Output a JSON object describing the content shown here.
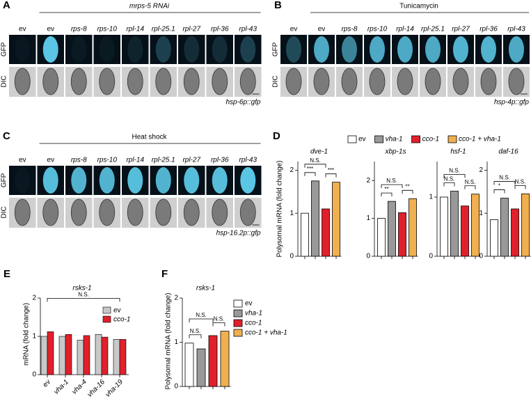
{
  "panels": [
    {
      "label": "A",
      "header": "mrps-5 RNAi",
      "columns": [
        "ev",
        "ev",
        "rps-8",
        "rps-10",
        "rpl-14",
        "rpl-25.1",
        "rpl-27",
        "rpl-36",
        "rpl-43"
      ],
      "rows": [
        "GFP",
        "DIC"
      ],
      "reporter": "hsp-6p::gfp"
    },
    {
      "label": "B",
      "header": "Tunicamycin",
      "columns": [
        "ev",
        "ev",
        "rps-8",
        "rps-10",
        "rpl-14",
        "rpl-25.1",
        "rpl-27",
        "rpl-36",
        "rpl-43"
      ],
      "rows": [
        "GFP",
        "DIC"
      ],
      "reporter": "hsp-4p::gfp"
    },
    {
      "label": "C",
      "header": "Heat shock",
      "columns": [
        "ev",
        "ev",
        "rps-8",
        "rps-10",
        "rpl-14",
        "rpl-25.1",
        "rpl-27",
        "rpl-36",
        "rpl-43"
      ],
      "rows": [
        "GFP",
        "DIC"
      ],
      "reporter": "hsp-16.2p::gfp"
    }
  ],
  "panel_d": {
    "label": "D",
    "y_label": "Polysomal mRNA (fold change)",
    "legend": [
      "ev",
      "vha-1",
      "cco-1",
      "cco-1 + vha-1"
    ]
  },
  "chart_data": [
    {
      "type": "bar",
      "title": "dve-1",
      "categories": [
        null,
        null,
        null,
        null
      ],
      "values": [
        1.0,
        1.75,
        1.1,
        1.72
      ],
      "colors": [
        "#ffffff",
        "#999999",
        "#e0202a",
        "#f0b050"
      ],
      "ylim": [
        0,
        2.2
      ],
      "yticks": [
        0,
        1,
        2
      ],
      "brackets": [
        {
          "from": 0,
          "to": 1,
          "label": "***"
        },
        {
          "from": 0,
          "to": 2,
          "label": "N.S."
        },
        {
          "from": 2,
          "to": 3,
          "label": "***"
        }
      ]
    },
    {
      "type": "bar",
      "title": "xbp-1s",
      "categories": [
        null,
        null,
        null,
        null
      ],
      "values": [
        1.0,
        1.45,
        1.15,
        1.52
      ],
      "colors": [
        "#ffffff",
        "#999999",
        "#e0202a",
        "#f0b050"
      ],
      "ylim": [
        0,
        2.5
      ],
      "yticks": [
        0,
        1,
        2
      ],
      "brackets": [
        {
          "from": 0,
          "to": 1,
          "label": "**"
        },
        {
          "from": 0,
          "to": 2,
          "label": "N.S."
        },
        {
          "from": 2,
          "to": 3,
          "label": "**"
        }
      ]
    },
    {
      "type": "bar",
      "title": "hsf-1",
      "categories": [
        null,
        null,
        null,
        null
      ],
      "values": [
        1.0,
        1.1,
        0.85,
        1.05
      ],
      "colors": [
        "#ffffff",
        "#999999",
        "#e0202a",
        "#f0b050"
      ],
      "ylim": [
        0,
        1.6
      ],
      "yticks": [
        0,
        1
      ],
      "brackets": [
        {
          "from": 0,
          "to": 1,
          "label": "N.S."
        },
        {
          "from": 0,
          "to": 2,
          "label": "N.S."
        },
        {
          "from": 2,
          "to": 3,
          "label": "N.S."
        }
      ]
    },
    {
      "type": "bar",
      "title": "daf-16",
      "categories": [
        null,
        null,
        null,
        null
      ],
      "values": [
        0.85,
        1.35,
        1.1,
        1.45
      ],
      "colors": [
        "#ffffff",
        "#999999",
        "#e0202a",
        "#f0b050"
      ],
      "ylim": [
        0,
        2.2
      ],
      "yticks": [
        0,
        1,
        2
      ],
      "brackets": [
        {
          "from": 0,
          "to": 1,
          "label": "*"
        },
        {
          "from": 0,
          "to": 2,
          "label": "N.S."
        },
        {
          "from": 2,
          "to": 3,
          "label": "N.S."
        }
      ]
    },
    {
      "type": "grouped_bar",
      "panel": "E",
      "title": "rsks-1",
      "y_label": "mRNA (fold change)",
      "categories": [
        "ev",
        "vha-1",
        "vha-4",
        "vha-16",
        "vha-19"
      ],
      "series": [
        {
          "name": "ev",
          "color": "#c8c8c8",
          "values": [
            1.0,
            1.0,
            0.9,
            1.05,
            0.92
          ]
        },
        {
          "name": "cco-1",
          "color": "#e0202a",
          "values": [
            1.12,
            1.05,
            1.02,
            0.98,
            0.92
          ]
        }
      ],
      "ylim": [
        0,
        2
      ],
      "yticks": [
        0,
        1,
        2
      ],
      "brackets": [
        {
          "from": 0,
          "to": 4,
          "label": "N.S."
        }
      ]
    },
    {
      "type": "bar",
      "panel": "F",
      "title": "rsks-1",
      "y_label": "Polysomal mRNA (fold change)",
      "categories": [
        null,
        null,
        null,
        null
      ],
      "values": [
        0.98,
        0.85,
        1.15,
        1.25
      ],
      "colors": [
        "#ffffff",
        "#999999",
        "#e0202a",
        "#f0b050"
      ],
      "legend": [
        "ev",
        "vha-1",
        "cco-1",
        "cco-1 + vha-1"
      ],
      "ylim": [
        0,
        2
      ],
      "yticks": [
        0,
        1,
        2
      ],
      "brackets": [
        {
          "from": 0,
          "to": 1,
          "label": "N.S."
        },
        {
          "from": 0,
          "to": 2,
          "label": "N.S."
        },
        {
          "from": 2,
          "to": 3,
          "label": "N.S."
        }
      ]
    }
  ]
}
